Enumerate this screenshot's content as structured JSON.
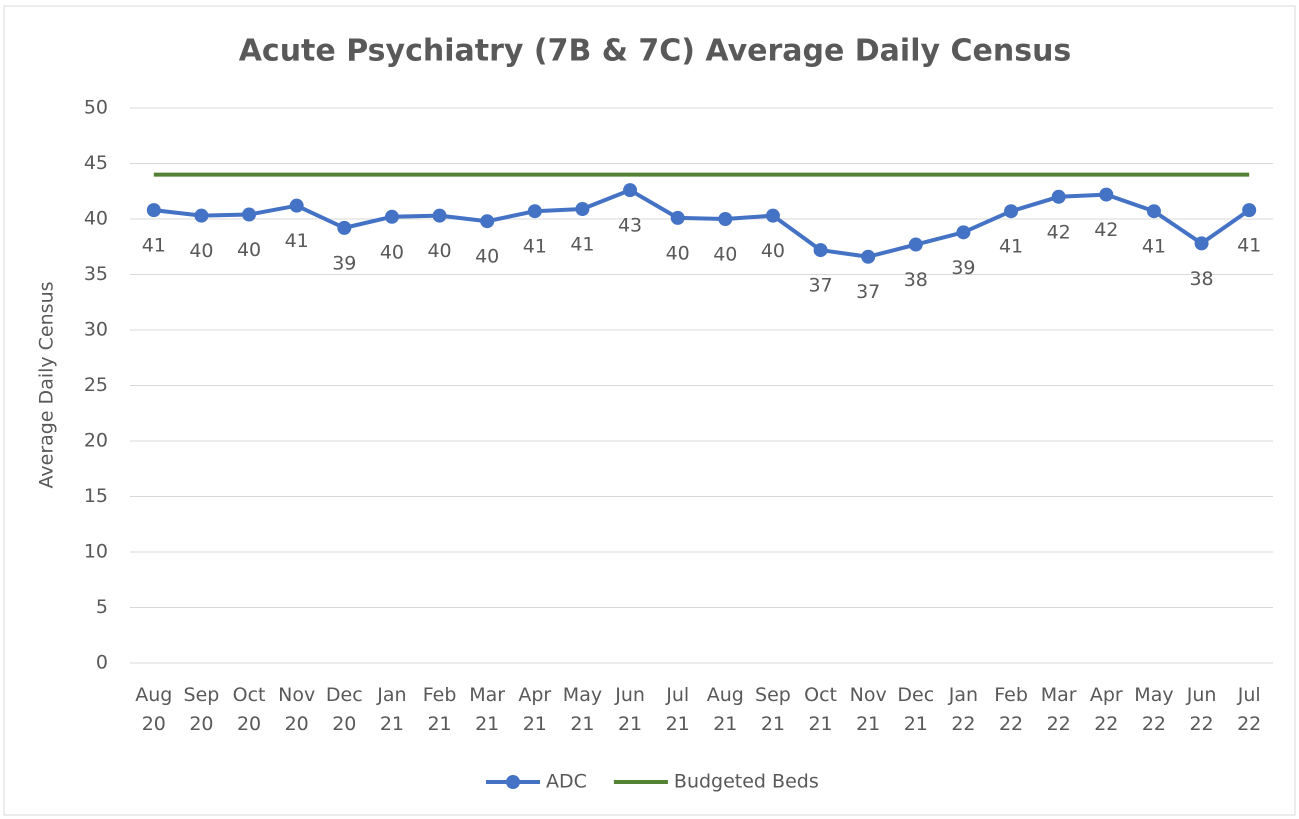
{
  "chart_data": {
    "type": "line",
    "title": "Acute Psychiatry (7B & 7C) Average Daily Census",
    "y_label": "Average Daily Census",
    "categories": [
      "Aug 20",
      "Sep 20",
      "Oct 20",
      "Nov 20",
      "Dec 20",
      "Jan 21",
      "Feb 21",
      "Mar 21",
      "Apr 21",
      "May 21",
      "Jun 21",
      "Jul 21",
      "Aug 21",
      "Sep 21",
      "Oct 21",
      "Nov 21",
      "Dec 21",
      "Jan 22",
      "Feb 22",
      "Mar 22",
      "Apr 22",
      "May 22",
      "Jun 22",
      "Jul 22"
    ],
    "series": [
      {
        "name": "ADC",
        "color": "#4472c4",
        "markers": true,
        "values": [
          40.8,
          40.3,
          40.4,
          41.2,
          39.2,
          40.2,
          40.3,
          39.8,
          40.7,
          40.9,
          42.6,
          40.1,
          40.0,
          40.3,
          37.2,
          36.6,
          37.7,
          38.8,
          40.7,
          42.0,
          42.2,
          40.7,
          37.8,
          40.8
        ],
        "value_labels": [
          "41",
          "40",
          "40",
          "41",
          "39",
          "40",
          "40",
          "40",
          "41",
          "41",
          "43",
          "40",
          "40",
          "40",
          "37",
          "37",
          "38",
          "39",
          "41",
          "42",
          "42",
          "41",
          "38",
          "41"
        ]
      },
      {
        "name": "Budgeted Beds",
        "color": "#548235",
        "markers": false,
        "values": [
          44,
          44,
          44,
          44,
          44,
          44,
          44,
          44,
          44,
          44,
          44,
          44,
          44,
          44,
          44,
          44,
          44,
          44,
          44,
          44,
          44,
          44,
          44,
          44
        ]
      }
    ],
    "ylim": [
      0,
      50
    ],
    "yticks": [
      0,
      5,
      10,
      15,
      20,
      25,
      30,
      35,
      40,
      45,
      50
    ],
    "grid": true,
    "legend": "bottom"
  }
}
